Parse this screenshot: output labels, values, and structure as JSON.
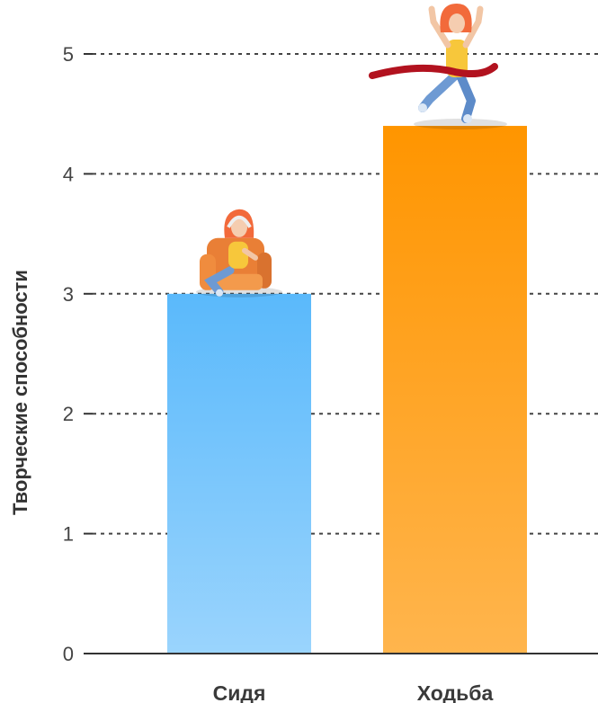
{
  "chart_data": {
    "type": "bar",
    "title": "",
    "xlabel": "",
    "ylabel": "Творческие способности",
    "categories": [
      "Сидя",
      "Ходьба"
    ],
    "values": [
      3.0,
      4.4
    ],
    "ylim": [
      0,
      5
    ],
    "yticks": [
      "0",
      "1",
      "2",
      "3",
      "4",
      "5"
    ],
    "grid": true,
    "bar_colors": [
      {
        "top": "#5ab9fb",
        "bottom": "#9ad4fd"
      },
      {
        "top": "#ff9500",
        "bottom": "#ffb54d"
      }
    ],
    "illustrations": [
      "woman-in-armchair-illustration",
      "running-woman-finish-line-illustration"
    ]
  }
}
